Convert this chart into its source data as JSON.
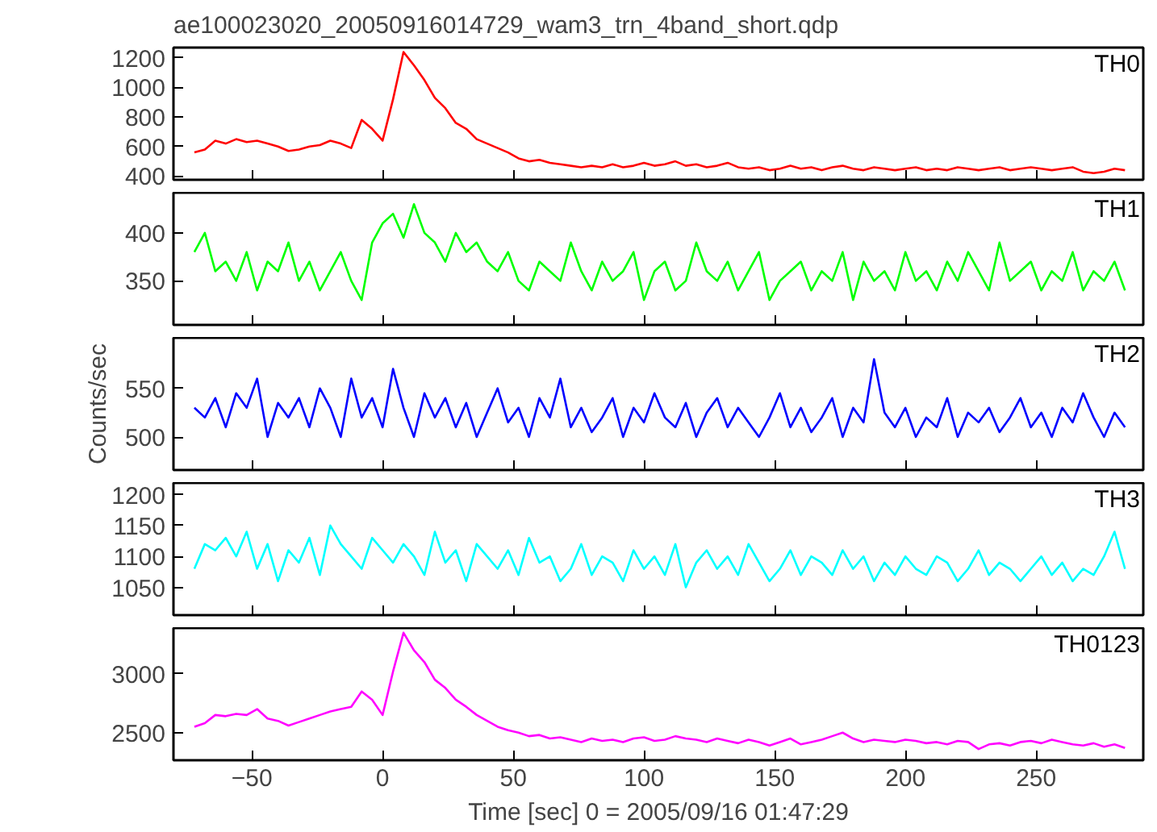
{
  "chart_data": [
    {
      "type": "line",
      "title": "ae100023020_20050916014729_wam3_trn_4band_short.qdp",
      "tick_labels": "y",
      "xlim": [
        -80,
        291
      ],
      "xticks": [
        -50,
        0,
        50,
        100,
        150,
        200,
        250
      ],
      "ylim": [
        375,
        1270
      ],
      "yticks": [
        400,
        600,
        800,
        1000,
        1200
      ],
      "x": [
        -72,
        -68,
        -64,
        -60,
        -56,
        -52,
        -48,
        -44,
        -40,
        -36,
        -32,
        -28,
        -24,
        -20,
        -16,
        -12,
        -8,
        -4,
        0,
        4,
        8,
        12,
        16,
        20,
        24,
        28,
        32,
        36,
        40,
        44,
        48,
        52,
        56,
        60,
        64,
        68,
        72,
        76,
        80,
        84,
        88,
        92,
        96,
        100,
        104,
        108,
        112,
        116,
        120,
        124,
        128,
        132,
        136,
        140,
        144,
        148,
        152,
        156,
        160,
        164,
        168,
        172,
        176,
        180,
        184,
        188,
        192,
        196,
        200,
        204,
        208,
        212,
        216,
        220,
        224,
        228,
        232,
        236,
        240,
        244,
        248,
        252,
        256,
        260,
        264,
        268,
        272,
        276,
        280,
        284
      ],
      "series": [
        {
          "name": "TH0",
          "color": "#ff0000",
          "values": [
            560,
            580,
            640,
            620,
            650,
            630,
            640,
            620,
            600,
            570,
            580,
            600,
            610,
            640,
            620,
            590,
            780,
            720,
            640,
            920,
            1240,
            1150,
            1050,
            930,
            860,
            760,
            720,
            650,
            620,
            590,
            560,
            520,
            500,
            510,
            490,
            480,
            470,
            460,
            470,
            460,
            480,
            460,
            470,
            490,
            470,
            480,
            500,
            470,
            480,
            460,
            470,
            490,
            460,
            450,
            460,
            440,
            450,
            470,
            450,
            460,
            440,
            460,
            470,
            450,
            440,
            460,
            450,
            440,
            450,
            460,
            440,
            450,
            440,
            460,
            450,
            440,
            450,
            460,
            440,
            450,
            460,
            450,
            440,
            450,
            460,
            430,
            420,
            430,
            450,
            440
          ]
        }
      ]
    },
    {
      "type": "line",
      "tick_labels": "y",
      "xlim": [
        -80,
        291
      ],
      "xticks": [
        -50,
        0,
        50,
        100,
        150,
        200,
        250
      ],
      "ylim": [
        304,
        442
      ],
      "yticks": [
        350,
        400
      ],
      "x": [
        -72,
        -68,
        -64,
        -60,
        -56,
        -52,
        -48,
        -44,
        -40,
        -36,
        -32,
        -28,
        -24,
        -20,
        -16,
        -12,
        -8,
        -4,
        0,
        4,
        8,
        12,
        16,
        20,
        24,
        28,
        32,
        36,
        40,
        44,
        48,
        52,
        56,
        60,
        64,
        68,
        72,
        76,
        80,
        84,
        88,
        92,
        96,
        100,
        104,
        108,
        112,
        116,
        120,
        124,
        128,
        132,
        136,
        140,
        144,
        148,
        152,
        156,
        160,
        164,
        168,
        172,
        176,
        180,
        184,
        188,
        192,
        196,
        200,
        204,
        208,
        212,
        216,
        220,
        224,
        228,
        232,
        236,
        240,
        244,
        248,
        252,
        256,
        260,
        264,
        268,
        272,
        276,
        280,
        284
      ],
      "series": [
        {
          "name": "TH1",
          "color": "#00ff00",
          "values": [
            380,
            400,
            360,
            370,
            350,
            380,
            340,
            370,
            360,
            390,
            350,
            370,
            340,
            360,
            380,
            350,
            330,
            390,
            410,
            420,
            395,
            430,
            400,
            390,
            370,
            400,
            380,
            390,
            370,
            360,
            380,
            350,
            340,
            370,
            360,
            350,
            390,
            360,
            340,
            370,
            350,
            360,
            380,
            330,
            360,
            370,
            340,
            350,
            390,
            360,
            350,
            370,
            340,
            360,
            380,
            330,
            350,
            360,
            370,
            340,
            360,
            350,
            380,
            330,
            370,
            350,
            360,
            340,
            380,
            350,
            360,
            340,
            370,
            350,
            380,
            360,
            340,
            390,
            350,
            360,
            370,
            340,
            360,
            350,
            380,
            340,
            360,
            350,
            370,
            340
          ]
        }
      ]
    },
    {
      "type": "line",
      "tick_labels": "y",
      "ylabel": "Counts/sec",
      "xlim": [
        -80,
        291
      ],
      "xticks": [
        -50,
        0,
        50,
        100,
        150,
        200,
        250
      ],
      "ylim": [
        466,
        602
      ],
      "yticks": [
        500,
        550
      ],
      "x": [
        -72,
        -68,
        -64,
        -60,
        -56,
        -52,
        -48,
        -44,
        -40,
        -36,
        -32,
        -28,
        -24,
        -20,
        -16,
        -12,
        -8,
        -4,
        0,
        4,
        8,
        12,
        16,
        20,
        24,
        28,
        32,
        36,
        40,
        44,
        48,
        52,
        56,
        60,
        64,
        68,
        72,
        76,
        80,
        84,
        88,
        92,
        96,
        100,
        104,
        108,
        112,
        116,
        120,
        124,
        128,
        132,
        136,
        140,
        144,
        148,
        152,
        156,
        160,
        164,
        168,
        172,
        176,
        180,
        184,
        188,
        192,
        196,
        200,
        204,
        208,
        212,
        216,
        220,
        224,
        228,
        232,
        236,
        240,
        244,
        248,
        252,
        256,
        260,
        264,
        268,
        272,
        276,
        280,
        284
      ],
      "series": [
        {
          "name": "TH2",
          "color": "#0000ff",
          "values": [
            530,
            520,
            540,
            510,
            545,
            530,
            560,
            500,
            535,
            520,
            540,
            510,
            550,
            530,
            500,
            560,
            520,
            540,
            510,
            570,
            530,
            500,
            545,
            520,
            540,
            510,
            535,
            500,
            525,
            550,
            515,
            530,
            500,
            540,
            520,
            560,
            510,
            530,
            505,
            520,
            540,
            500,
            530,
            515,
            545,
            520,
            510,
            535,
            500,
            525,
            540,
            510,
            530,
            515,
            500,
            520,
            545,
            510,
            530,
            505,
            520,
            540,
            500,
            530,
            515,
            580,
            525,
            510,
            530,
            500,
            520,
            510,
            540,
            500,
            525,
            515,
            530,
            505,
            520,
            540,
            510,
            525,
            500,
            530,
            515,
            545,
            520,
            500,
            525,
            510
          ]
        }
      ]
    },
    {
      "type": "line",
      "tick_labels": "y",
      "xlim": [
        -80,
        291
      ],
      "xticks": [
        -50,
        0,
        50,
        100,
        150,
        200,
        250
      ],
      "ylim": [
        1005,
        1219
      ],
      "yticks": [
        1050,
        1100,
        1150,
        1200
      ],
      "x": [
        -72,
        -68,
        -64,
        -60,
        -56,
        -52,
        -48,
        -44,
        -40,
        -36,
        -32,
        -28,
        -24,
        -20,
        -16,
        -12,
        -8,
        -4,
        0,
        4,
        8,
        12,
        16,
        20,
        24,
        28,
        32,
        36,
        40,
        44,
        48,
        52,
        56,
        60,
        64,
        68,
        72,
        76,
        80,
        84,
        88,
        92,
        96,
        100,
        104,
        108,
        112,
        116,
        120,
        124,
        128,
        132,
        136,
        140,
        144,
        148,
        152,
        156,
        160,
        164,
        168,
        172,
        176,
        180,
        184,
        188,
        192,
        196,
        200,
        204,
        208,
        212,
        216,
        220,
        224,
        228,
        232,
        236,
        240,
        244,
        248,
        252,
        256,
        260,
        264,
        268,
        272,
        276,
        280,
        284
      ],
      "series": [
        {
          "name": "TH3",
          "color": "#00ffff",
          "values": [
            1080,
            1120,
            1110,
            1130,
            1100,
            1140,
            1080,
            1120,
            1060,
            1110,
            1090,
            1130,
            1070,
            1150,
            1120,
            1100,
            1080,
            1130,
            1110,
            1090,
            1120,
            1100,
            1070,
            1140,
            1090,
            1110,
            1060,
            1120,
            1100,
            1080,
            1110,
            1070,
            1130,
            1090,
            1100,
            1060,
            1080,
            1120,
            1070,
            1100,
            1090,
            1060,
            1110,
            1080,
            1100,
            1070,
            1120,
            1050,
            1090,
            1110,
            1080,
            1100,
            1070,
            1120,
            1090,
            1060,
            1080,
            1110,
            1070,
            1100,
            1090,
            1070,
            1110,
            1080,
            1100,
            1060,
            1090,
            1070,
            1100,
            1080,
            1070,
            1100,
            1090,
            1060,
            1080,
            1110,
            1070,
            1090,
            1080,
            1060,
            1080,
            1100,
            1070,
            1090,
            1060,
            1080,
            1070,
            1100,
            1140,
            1080
          ]
        }
      ]
    },
    {
      "type": "line",
      "xlabel": "Time [sec] 0 = 2005/09/16 01:47:29",
      "xlim": [
        -80,
        291
      ],
      "xticks": [
        -50,
        0,
        50,
        100,
        150,
        200,
        250
      ],
      "ylim": [
        2265,
        3390
      ],
      "yticks": [
        2500,
        3000
      ],
      "x": [
        -72,
        -68,
        -64,
        -60,
        -56,
        -52,
        -48,
        -44,
        -40,
        -36,
        -32,
        -28,
        -24,
        -20,
        -16,
        -12,
        -8,
        -4,
        0,
        4,
        8,
        12,
        16,
        20,
        24,
        28,
        32,
        36,
        40,
        44,
        48,
        52,
        56,
        60,
        64,
        68,
        72,
        76,
        80,
        84,
        88,
        92,
        96,
        100,
        104,
        108,
        112,
        116,
        120,
        124,
        128,
        132,
        136,
        140,
        144,
        148,
        152,
        156,
        160,
        164,
        168,
        172,
        176,
        180,
        184,
        188,
        192,
        196,
        200,
        204,
        208,
        212,
        216,
        220,
        224,
        228,
        232,
        236,
        240,
        244,
        248,
        252,
        256,
        260,
        264,
        268,
        272,
        276,
        280,
        284
      ],
      "series": [
        {
          "name": "TH0123",
          "color": "#ff00ff",
          "values": [
            2550,
            2580,
            2650,
            2640,
            2660,
            2650,
            2700,
            2620,
            2600,
            2560,
            2590,
            2620,
            2650,
            2680,
            2700,
            2720,
            2850,
            2780,
            2650,
            3020,
            3350,
            3200,
            3100,
            2950,
            2880,
            2780,
            2720,
            2650,
            2600,
            2550,
            2520,
            2500,
            2470,
            2480,
            2450,
            2460,
            2440,
            2420,
            2450,
            2430,
            2440,
            2420,
            2450,
            2460,
            2430,
            2440,
            2470,
            2450,
            2440,
            2420,
            2450,
            2430,
            2410,
            2440,
            2420,
            2390,
            2420,
            2450,
            2400,
            2420,
            2440,
            2470,
            2500,
            2450,
            2420,
            2440,
            2430,
            2420,
            2440,
            2430,
            2410,
            2420,
            2400,
            2430,
            2420,
            2360,
            2400,
            2410,
            2390,
            2420,
            2430,
            2410,
            2440,
            2420,
            2400,
            2390,
            2410,
            2380,
            2400,
            2370
          ]
        }
      ]
    }
  ]
}
